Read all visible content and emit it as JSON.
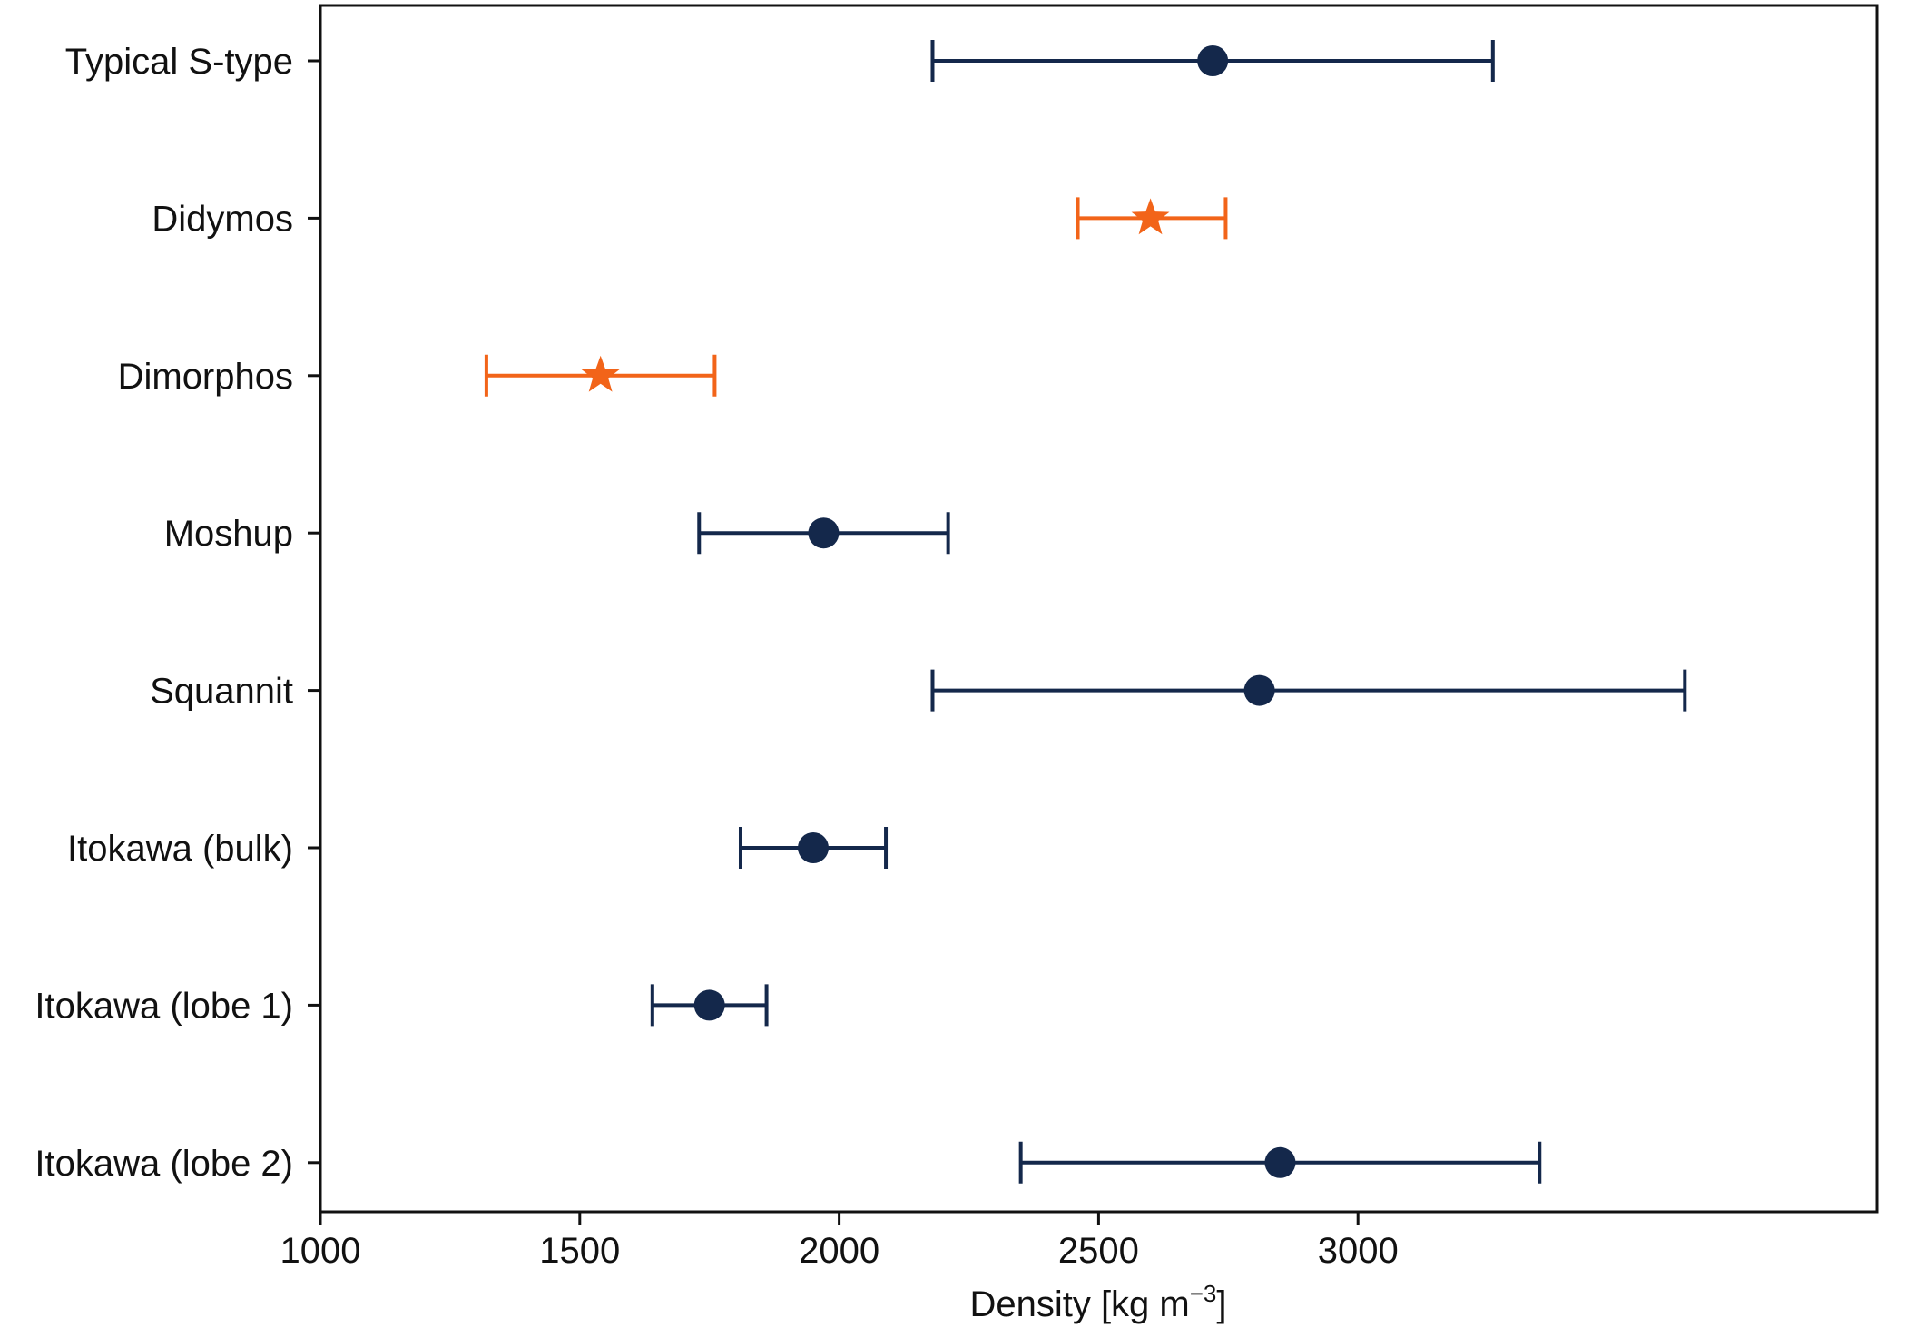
{
  "chart_data": {
    "type": "scatter",
    "title": "",
    "xlabel": "Density [kg m",
    "xlabel_sup": "−3",
    "xlabel_close": "]",
    "ylabel": "",
    "xlim": [
      1000,
      4000
    ],
    "xticks": [
      1000,
      1500,
      2000,
      2500,
      3000
    ],
    "grid": false,
    "legend": "none",
    "categories": [
      "Typical S-type",
      "Didymos",
      "Dimorphos",
      "Moshup",
      "Squannit",
      "Itokawa (bulk)",
      "Itokawa (lobe 1)",
      "Itokawa (lobe 2)"
    ],
    "points": [
      {
        "label": "Typical S-type",
        "value": 2720,
        "low": 2180,
        "high": 3260,
        "marker": "circle",
        "color": "#14284b"
      },
      {
        "label": "Didymos",
        "value": 2600,
        "low": 2460,
        "high": 2745,
        "marker": "star",
        "color": "#f26419"
      },
      {
        "label": "Dimorphos",
        "value": 1540,
        "low": 1320,
        "high": 1760,
        "marker": "star",
        "color": "#f26419"
      },
      {
        "label": "Moshup",
        "value": 1970,
        "low": 1730,
        "high": 2210,
        "marker": "circle",
        "color": "#14284b"
      },
      {
        "label": "Squannit",
        "value": 2810,
        "low": 2180,
        "high": 3630,
        "marker": "circle",
        "color": "#14284b"
      },
      {
        "label": "Itokawa (bulk)",
        "value": 1950,
        "low": 1810,
        "high": 2090,
        "marker": "circle",
        "color": "#14284b"
      },
      {
        "label": "Itokawa (lobe 1)",
        "value": 1750,
        "low": 1640,
        "high": 1860,
        "marker": "circle",
        "color": "#14284b"
      },
      {
        "label": "Itokawa (lobe 2)",
        "value": 2850,
        "low": 2350,
        "high": 3350,
        "marker": "circle",
        "color": "#14284b"
      }
    ]
  }
}
